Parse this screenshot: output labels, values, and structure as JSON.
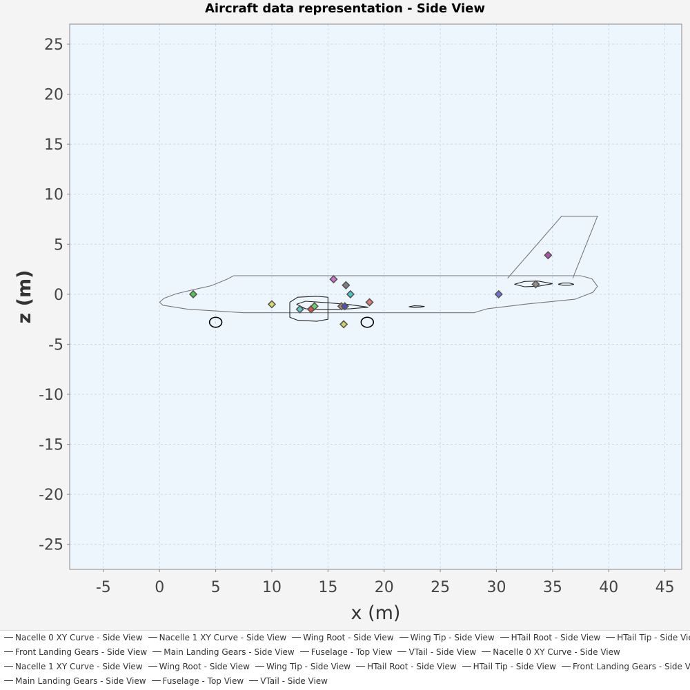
{
  "chart_data": {
    "type": "line",
    "title": "Aircraft data representation - Side View",
    "xlabel": "x (m)",
    "ylabel": "z (m)",
    "xlim": [
      -8,
      46.5
    ],
    "ylim": [
      -27.5,
      27
    ],
    "xticks": [
      "-5",
      "0",
      "5",
      "10",
      "15",
      "20",
      "25",
      "30",
      "35",
      "40",
      "45"
    ],
    "yticks": [
      "25",
      "20",
      "15",
      "10",
      "5",
      "0",
      "-5",
      "-10",
      "-15",
      "-20",
      "-25"
    ],
    "grid": true,
    "legend_position": "bottom",
    "colors": {
      "plot_bg": "#eef6fd",
      "grid": "#c9d9e8",
      "fuselage": "#777777",
      "outline": "#222222"
    },
    "series": [
      {
        "name": "Fuselage - Top View",
        "points": [
          [
            0,
            -0.8
          ],
          [
            0.4,
            -0.4
          ],
          [
            1.5,
            0.05
          ],
          [
            3,
            0.45
          ],
          [
            4.6,
            0.85
          ],
          [
            6.0,
            1.5
          ],
          [
            6.6,
            1.85
          ],
          [
            37.5,
            1.85
          ],
          [
            38.5,
            1.55
          ],
          [
            39.0,
            0.8
          ],
          [
            38.6,
            0.2
          ],
          [
            37.0,
            -0.5
          ],
          [
            32.5,
            -1.0
          ],
          [
            29.2,
            -1.45
          ],
          [
            28.0,
            -1.85
          ],
          [
            7.5,
            -1.85
          ],
          [
            2.5,
            -1.5
          ],
          [
            0.3,
            -1.1
          ],
          [
            0,
            -0.8
          ]
        ]
      },
      {
        "name": "VTail - Side View",
        "points": [
          [
            31.0,
            1.6
          ],
          [
            35.8,
            7.8
          ],
          [
            39.0,
            7.8
          ],
          [
            36.8,
            1.6
          ]
        ]
      },
      {
        "name": "Nacelle 0 XY Curve - Side View",
        "points": [
          [
            11.6,
            -0.8
          ],
          [
            12.3,
            -0.3
          ],
          [
            14.0,
            -0.2
          ],
          [
            15.0,
            -0.3
          ],
          [
            15.0,
            -2.5
          ],
          [
            14.0,
            -2.7
          ],
          [
            12.3,
            -2.6
          ],
          [
            11.6,
            -2.3
          ],
          [
            11.6,
            -0.8
          ]
        ]
      },
      {
        "name": "Wing Root - Side View",
        "points": [
          [
            12.2,
            -1.0
          ],
          [
            13.0,
            -0.7
          ],
          [
            15.0,
            -0.85
          ],
          [
            17.0,
            -1.05
          ],
          [
            18.6,
            -1.3
          ],
          [
            17.0,
            -1.45
          ],
          [
            15.0,
            -1.55
          ],
          [
            13.0,
            -1.45
          ],
          [
            12.2,
            -1.0
          ]
        ]
      },
      {
        "name": "Wing Tip - Side View",
        "points": [
          [
            22.2,
            -1.25
          ],
          [
            22.7,
            -1.15
          ],
          [
            23.2,
            -1.17
          ],
          [
            23.6,
            -1.22
          ],
          [
            23.2,
            -1.3
          ],
          [
            22.7,
            -1.33
          ],
          [
            22.2,
            -1.25
          ]
        ]
      },
      {
        "name": "HTail Root - Side View",
        "points": [
          [
            31.6,
            1.0
          ],
          [
            32.5,
            1.28
          ],
          [
            33.7,
            1.32
          ],
          [
            35.0,
            1.05
          ],
          [
            33.7,
            0.8
          ],
          [
            32.5,
            0.75
          ],
          [
            31.6,
            1.0
          ]
        ]
      },
      {
        "name": "HTail Tip - Side View",
        "points": [
          [
            35.5,
            1.0
          ],
          [
            35.9,
            1.12
          ],
          [
            36.5,
            1.12
          ],
          [
            36.9,
            1.0
          ],
          [
            36.5,
            0.9
          ],
          [
            35.9,
            0.9
          ],
          [
            35.5,
            1.0
          ]
        ]
      },
      {
        "name": "Front Landing Gears - Side View",
        "ellipse": {
          "cx": 5.0,
          "cy": -2.8,
          "rx": 0.55,
          "ry": 0.5
        }
      },
      {
        "name": "Main Landing Gears - Side View",
        "ellipse": {
          "cx": 18.5,
          "cy": -2.8,
          "rx": 0.55,
          "ry": 0.5
        }
      }
    ],
    "markers": [
      {
        "x": 3.0,
        "z": 0.0,
        "color": "#54c454"
      },
      {
        "x": 10.0,
        "z": -1.0,
        "color": "#d8d870"
      },
      {
        "x": 12.5,
        "z": -1.5,
        "color": "#5cc8c8"
      },
      {
        "x": 13.5,
        "z": -1.5,
        "color": "#e05050"
      },
      {
        "x": 13.8,
        "z": -1.2,
        "color": "#6cd06c"
      },
      {
        "x": 15.5,
        "z": 1.5,
        "color": "#d070d0"
      },
      {
        "x": 16.2,
        "z": -1.2,
        "color": "#b88a6a"
      },
      {
        "x": 16.4,
        "z": -3.0,
        "color": "#d0d060"
      },
      {
        "x": 16.5,
        "z": -1.2,
        "color": "#5050b8"
      },
      {
        "x": 16.6,
        "z": 0.9,
        "color": "#808080"
      },
      {
        "x": 17.0,
        "z": 0.0,
        "color": "#4cc4c4"
      },
      {
        "x": 18.7,
        "z": -0.8,
        "color": "#e07878"
      },
      {
        "x": 30.2,
        "z": 0.0,
        "color": "#7070d8"
      },
      {
        "x": 33.5,
        "z": 1.0,
        "color": "#909090"
      },
      {
        "x": 34.6,
        "z": 3.9,
        "color": "#b050b0"
      }
    ]
  },
  "legend": {
    "rows": [
      [
        "Nacelle 0 XY Curve - Side View",
        "Nacelle 1 XY Curve - Side View",
        "Wing Root - Side View",
        "Wing Tip - Side View",
        "HTail Root - Side View",
        "HTail Tip - Side View"
      ],
      [
        "Front Landing Gears - Side View",
        "Main Landing Gears - Side View",
        "Fuselage - Top View",
        "VTail - Side View",
        "Nacelle 0 XY Curve - Side View"
      ],
      [
        "Nacelle 1 XY Curve - Side View",
        "Wing Root - Side View",
        "Wing Tip - Side View",
        "HTail Root - Side View",
        "HTail Tip - Side View",
        "Front Landing Gears - Side View"
      ],
      [
        "Main Landing Gears - Side View",
        "Fuselage - Top View",
        "VTail - Side View"
      ]
    ]
  }
}
